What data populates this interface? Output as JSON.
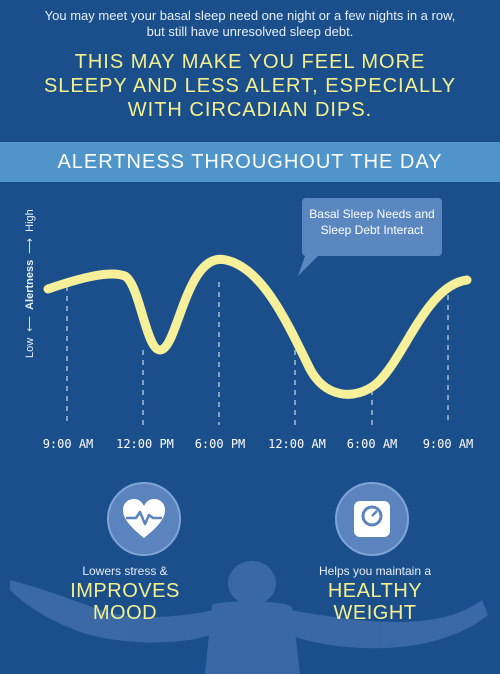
{
  "intro_text": "You may meet your basal sleep need one night or a few nights in a row, but still have unresolved sleep debt.",
  "headline": "THIS MAY MAKE YOU FEEL MORE SLEEPY AND LESS ALERT, ESPECIALLY WITH CIRCADIAN DIPS.",
  "section_title": "ALERTNESS THROUGHOUT THE DAY",
  "chart": {
    "callout": "Basal Sleep Needs and Sleep Debt Interact",
    "axis": {
      "low": "Low",
      "label": "Alertness",
      "high": "High"
    },
    "time_labels": [
      "9:00 AM",
      "12:00 PM",
      "6:00 PM",
      "12:00 AM",
      "6:00 AM",
      "9:00 AM"
    ]
  },
  "benefits": {
    "left": {
      "icon": "heart-rate-icon",
      "caption": "Lowers stress &",
      "big_line1": "IMPROVES",
      "big_line2": "MOOD"
    },
    "right": {
      "icon": "scale-icon",
      "caption": "Helps you maintain a",
      "big_line1": "HEALTHY",
      "big_line2": "WEIGHT"
    }
  },
  "colors": {
    "background": "#1b4f8c",
    "band": "#4f95c9",
    "curve": "#f6f09a",
    "accent_text": "#f4f08e",
    "callout_bg": "#5a87bf"
  }
}
